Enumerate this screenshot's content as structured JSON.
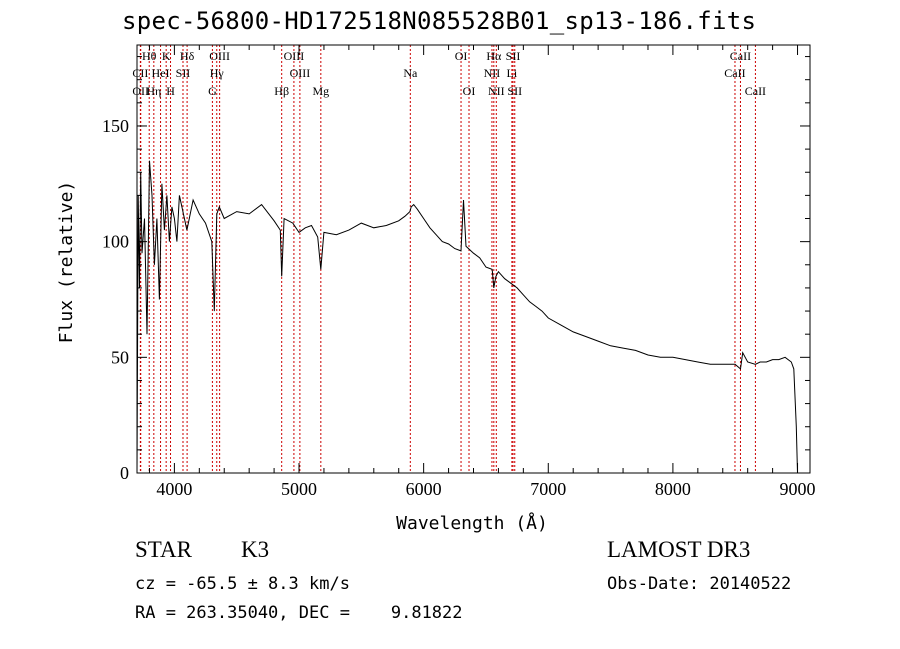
{
  "chart_data": {
    "type": "line",
    "title": "spec-56800-HD172518N085528B01_sp13-186.fits",
    "xlabel": "Wavelength (Å)",
    "ylabel": "Flux (relative)",
    "xlim": [
      3700,
      9100
    ],
    "ylim": [
      0,
      185
    ],
    "xticks": [
      4000,
      5000,
      6000,
      7000,
      8000,
      9000
    ],
    "yticks": [
      0,
      50,
      100,
      150
    ],
    "grid": false,
    "series": [
      {
        "name": "spectrum",
        "x": [
          3700,
          3710,
          3720,
          3730,
          3740,
          3760,
          3780,
          3800,
          3820,
          3840,
          3860,
          3880,
          3900,
          3920,
          3940,
          3960,
          3980,
          4000,
          4020,
          4040,
          4060,
          4080,
          4100,
          4150,
          4200,
          4250,
          4300,
          4320,
          4340,
          4360,
          4400,
          4500,
          4600,
          4700,
          4800,
          4850,
          4861,
          4880,
          4950,
          5000,
          5050,
          5100,
          5150,
          5175,
          5200,
          5300,
          5400,
          5500,
          5600,
          5700,
          5800,
          5850,
          5890,
          5900,
          5920,
          5950,
          6000,
          6050,
          6100,
          6150,
          6200,
          6250,
          6300,
          6320,
          6340,
          6400,
          6450,
          6500,
          6550,
          6563,
          6580,
          6600,
          6650,
          6700,
          6750,
          6800,
          6850,
          6900,
          6950,
          7000,
          7100,
          7200,
          7300,
          7400,
          7500,
          7600,
          7700,
          7800,
          7900,
          8000,
          8100,
          8200,
          8300,
          8400,
          8498,
          8542,
          8560,
          8600,
          8662,
          8700,
          8750,
          8800,
          8850,
          8900,
          8950,
          8970,
          8990,
          9000
        ],
        "y": [
          0,
          120,
          80,
          130,
          95,
          110,
          60,
          135,
          120,
          90,
          110,
          75,
          125,
          105,
          120,
          100,
          115,
          110,
          100,
          120,
          115,
          110,
          105,
          118,
          112,
          108,
          100,
          70,
          112,
          115,
          110,
          113,
          112,
          116,
          109,
          105,
          85,
          110,
          108,
          104,
          106,
          107,
          102,
          88,
          104,
          103,
          105,
          108,
          106,
          107,
          109,
          111,
          113,
          115,
          116,
          114,
          110,
          106,
          103,
          100,
          99,
          97,
          96,
          118,
          98,
          95,
          93,
          89,
          88,
          80,
          85,
          87,
          84,
          82,
          80,
          77,
          74,
          72,
          70,
          67,
          64,
          61,
          59,
          57,
          55,
          54,
          53,
          51,
          50,
          50,
          49,
          48,
          47,
          47,
          47,
          45,
          52,
          48,
          47,
          48,
          48,
          49,
          49,
          50,
          48,
          45,
          20,
          0
        ]
      }
    ],
    "line_labels": [
      {
        "name": "Hθ",
        "x": 3798,
        "row": 1
      },
      {
        "name": "CII",
        "x": 3727,
        "row": 2
      },
      {
        "name": "OII",
        "x": 3730,
        "row": 3
      },
      {
        "name": "K",
        "x": 3934,
        "row": 1
      },
      {
        "name": "HeI",
        "x": 3889,
        "row": 2
      },
      {
        "name": "Hη",
        "x": 3835,
        "row": 3
      },
      {
        "name": "Hδ",
        "x": 4102,
        "row": 1
      },
      {
        "name": "SII",
        "x": 4069,
        "row": 2
      },
      {
        "name": "H",
        "x": 3969,
        "row": 3
      },
      {
        "name": "OIII",
        "x": 4363,
        "row": 1
      },
      {
        "name": "Hγ",
        "x": 4340,
        "row": 2
      },
      {
        "name": "G",
        "x": 4305,
        "row": 3
      },
      {
        "name": "OIII",
        "x": 4959,
        "row": 1
      },
      {
        "name": "OIII",
        "x": 5007,
        "row": 2
      },
      {
        "name": "Hβ",
        "x": 4861,
        "row": 3
      },
      {
        "name": "Mg",
        "x": 5175,
        "row": 3
      },
      {
        "name": "Na",
        "x": 5893,
        "row": 2
      },
      {
        "name": "OI",
        "x": 6300,
        "row": 1
      },
      {
        "name": "OI",
        "x": 6364,
        "row": 3
      },
      {
        "name": "Hα",
        "x": 6563,
        "row": 1
      },
      {
        "name": "SII",
        "x": 6717,
        "row": 1
      },
      {
        "name": "NII",
        "x": 6548,
        "row": 2
      },
      {
        "name": "Li",
        "x": 6708,
        "row": 2
      },
      {
        "name": "NII",
        "x": 6583,
        "row": 3
      },
      {
        "name": "SII",
        "x": 6731,
        "row": 3
      },
      {
        "name": "CaII",
        "x": 8542,
        "row": 1
      },
      {
        "name": "CaII",
        "x": 8498,
        "row": 2
      },
      {
        "name": "CaII",
        "x": 8662,
        "row": 3
      }
    ]
  },
  "footer": {
    "star_type": "STAR",
    "star_class": "K3",
    "survey": "LAMOST DR3",
    "cz": "cz = -65.5 ± 8.3 km/s",
    "obs_date": "Obs-Date: 20140522",
    "radec": "RA = 263.35040, DEC =    9.81822"
  }
}
